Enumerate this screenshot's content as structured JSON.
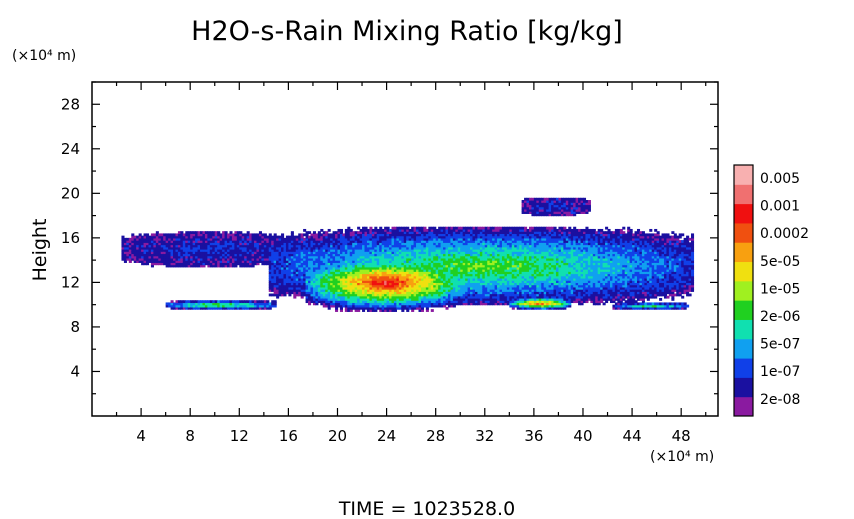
{
  "chart_data": {
    "type": "heatmap",
    "title": "H2O-s-Rain Mixing Ratio [kg/kg]",
    "ylabel": "Height",
    "y_unit_label": "(×10⁴ m)",
    "x_unit_label": "(×10⁴ m)",
    "x_ticks": [
      "4",
      "8",
      "12",
      "16",
      "20",
      "24",
      "28",
      "32",
      "36",
      "40",
      "44",
      "48"
    ],
    "y_ticks": [
      "4",
      "8",
      "12",
      "16",
      "20",
      "24",
      "28"
    ],
    "xlim": [
      0,
      51
    ],
    "ylim": [
      0,
      30
    ],
    "time_label": "TIME =  1023528.0",
    "colorbar": {
      "scale": "log",
      "labels": [
        "0.005",
        "0.001",
        "0.0002",
        "5e-05",
        "1e-05",
        "2e-06",
        "5e-07",
        "1e-07",
        "2e-08"
      ],
      "colors": [
        "#8a1aa0",
        "#1a10a0",
        "#1040e8",
        "#10a0f0",
        "#10e0b0",
        "#20d020",
        "#a0f020",
        "#f0e010",
        "#f8a010",
        "#f05010",
        "#f01010",
        "#f07070",
        "#f8b0b0"
      ]
    },
    "cloud_layers": [
      {
        "xmin": 2.5,
        "xmax": 16.5,
        "ymin": 13.5,
        "ymax": 16.5,
        "peak": 1
      },
      {
        "xmin": 14.5,
        "xmax": 49.0,
        "ymin": 10.0,
        "ymax": 17.0,
        "peak": 5
      },
      {
        "xmin": 17.5,
        "xmax": 30.5,
        "ymin": 9.5,
        "ymax": 14.5,
        "peak": 10
      },
      {
        "xmin": 34.0,
        "xmax": 39.0,
        "ymin": 9.6,
        "ymax": 10.7,
        "peak": 9
      },
      {
        "xmin": 6.0,
        "xmax": 15.0,
        "ymin": 9.6,
        "ymax": 10.4,
        "peak": 5
      },
      {
        "xmin": 42.5,
        "xmax": 48.5,
        "ymin": 9.6,
        "ymax": 10.2,
        "peak": 4
      },
      {
        "xmin": 35.0,
        "xmax": 40.5,
        "ymin": 18.0,
        "ymax": 19.7,
        "peak": 1
      }
    ]
  }
}
